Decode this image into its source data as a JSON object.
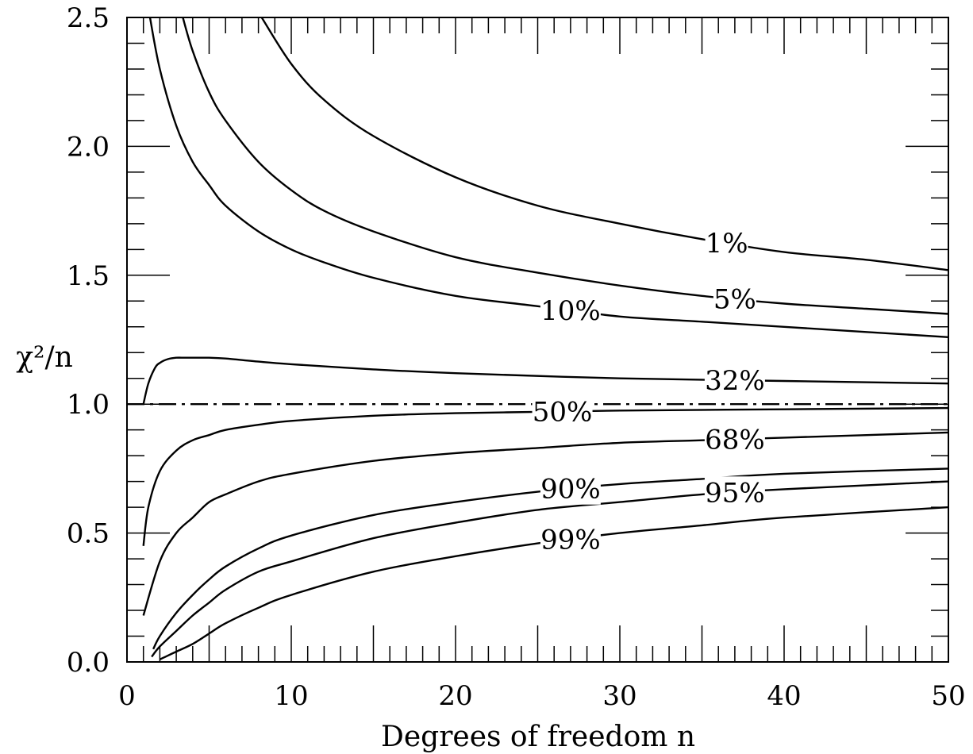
{
  "chart_data": {
    "type": "line",
    "xlabel": "Degrees of freedom n",
    "ylabel": "χ²/n",
    "xlim": [
      0,
      50
    ],
    "ylim": [
      0,
      2.5
    ],
    "x_ticks": [
      "0",
      "10",
      "20",
      "30",
      "40",
      "50"
    ],
    "y_ticks": [
      "0.0",
      "0.5",
      "1.0",
      "1.5",
      "2.0",
      "2.5"
    ],
    "grid": false,
    "legend": "none",
    "series": [
      {
        "name": "1%",
        "label_at": 36.5,
        "style": "solid",
        "x": [
          8.2,
          10,
          12,
          15,
          20,
          25,
          30,
          35,
          40,
          45,
          50
        ],
        "values": [
          2.5,
          2.32,
          2.18,
          2.04,
          1.88,
          1.77,
          1.7,
          1.64,
          1.59,
          1.56,
          1.52
        ]
      },
      {
        "name": "5%",
        "label_at": 37,
        "style": "solid",
        "x": [
          3.4,
          4,
          5,
          6,
          8,
          10,
          12,
          15,
          20,
          25,
          30,
          35,
          40,
          45,
          50
        ],
        "values": [
          2.5,
          2.37,
          2.21,
          2.1,
          1.94,
          1.83,
          1.75,
          1.67,
          1.57,
          1.51,
          1.46,
          1.42,
          1.39,
          1.37,
          1.35
        ]
      },
      {
        "name": "10%",
        "label_at": 27,
        "style": "solid",
        "x": [
          1.4,
          2,
          3,
          4,
          5,
          6,
          8,
          10,
          12,
          15,
          20,
          25,
          30,
          35,
          40,
          45,
          50
        ],
        "values": [
          2.5,
          2.3,
          2.08,
          1.94,
          1.85,
          1.77,
          1.67,
          1.6,
          1.55,
          1.49,
          1.42,
          1.38,
          1.34,
          1.32,
          1.3,
          1.28,
          1.26
        ]
      },
      {
        "name": "32%",
        "label_at": 37,
        "style": "solid",
        "x": [
          1,
          1.3,
          1.7,
          2,
          2.5,
          3,
          3.5,
          4,
          5,
          6,
          8,
          10,
          15,
          20,
          30,
          40,
          50
        ],
        "values": [
          1.0,
          1.08,
          1.14,
          1.16,
          1.175,
          1.18,
          1.18,
          1.18,
          1.18,
          1.177,
          1.165,
          1.155,
          1.135,
          1.12,
          1.1,
          1.09,
          1.08
        ]
      },
      {
        "name": "50%",
        "label_at": 26.5,
        "style": "solid",
        "x": [
          1,
          1.3,
          2,
          3,
          4,
          5,
          6,
          8,
          10,
          15,
          20,
          25,
          30,
          40,
          50
        ],
        "values": [
          0.45,
          0.6,
          0.74,
          0.82,
          0.86,
          0.88,
          0.9,
          0.92,
          0.935,
          0.955,
          0.965,
          0.97,
          0.975,
          0.98,
          0.985
        ]
      },
      {
        "name": "68%",
        "label_at": 37,
        "style": "solid",
        "x": [
          1,
          2,
          3,
          4,
          5,
          6,
          8,
          10,
          15,
          20,
          25,
          30,
          35,
          40,
          50
        ],
        "values": [
          0.18,
          0.39,
          0.5,
          0.56,
          0.62,
          0.65,
          0.7,
          0.73,
          0.78,
          0.81,
          0.83,
          0.85,
          0.86,
          0.87,
          0.89
        ]
      },
      {
        "name": "90%",
        "label_at": 27,
        "style": "solid",
        "x": [
          1.6,
          2,
          3,
          4,
          5,
          6,
          8,
          10,
          15,
          20,
          25,
          30,
          35,
          40,
          50
        ],
        "values": [
          0.05,
          0.1,
          0.19,
          0.26,
          0.32,
          0.37,
          0.44,
          0.49,
          0.57,
          0.62,
          0.66,
          0.69,
          0.71,
          0.73,
          0.75
        ]
      },
      {
        "name": "95%",
        "label_at": 37,
        "style": "solid",
        "x": [
          1.5,
          2,
          3,
          4,
          5,
          6,
          8,
          10,
          15,
          20,
          25,
          30,
          35,
          40,
          50
        ],
        "values": [
          0.02,
          0.06,
          0.12,
          0.18,
          0.23,
          0.28,
          0.35,
          0.39,
          0.48,
          0.54,
          0.59,
          0.62,
          0.65,
          0.67,
          0.7
        ]
      },
      {
        "name": "99%",
        "label_at": 27,
        "style": "solid",
        "x": [
          2,
          3,
          4,
          5,
          6,
          8,
          10,
          15,
          20,
          25,
          30,
          35,
          40,
          50
        ],
        "values": [
          0.01,
          0.04,
          0.07,
          0.11,
          0.15,
          0.21,
          0.26,
          0.35,
          0.41,
          0.46,
          0.5,
          0.53,
          0.56,
          0.6
        ]
      },
      {
        "name": "",
        "style": "dashdot",
        "x": [
          0,
          50
        ],
        "values": [
          1.0,
          1.0
        ]
      }
    ]
  }
}
